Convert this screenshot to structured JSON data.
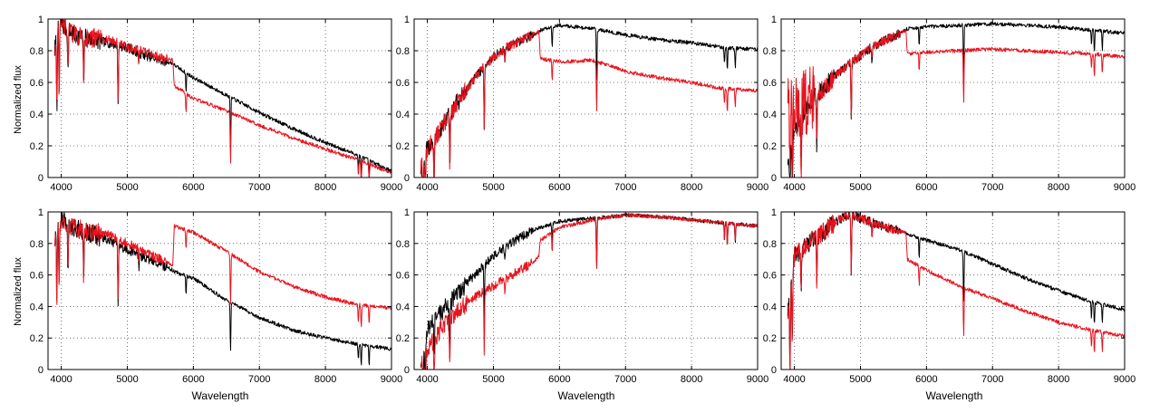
{
  "figure": {
    "ylabel_text": "Normalized flux",
    "xlabel_text": "Wavelength"
  },
  "axes": {
    "x_ticks": [
      4000,
      5000,
      6000,
      7000,
      8000,
      9000
    ],
    "y_ticks": [
      0,
      0.2,
      0.4,
      0.6,
      0.8,
      1
    ],
    "y_tick_labels": [
      "0",
      "0.2",
      "0.4",
      "0.6",
      "0.8",
      "1"
    ]
  },
  "chart_data": [
    {
      "type": "line",
      "panel": "row1-col1",
      "xlabel": "",
      "ylabel": "Normalized flux",
      "xlim": [
        3800,
        9000
      ],
      "ylim": [
        0,
        1
      ],
      "grid": "dotted",
      "x": [
        3900,
        3950,
        4000,
        4100,
        4200,
        4400,
        4600,
        4800,
        5000,
        5200,
        5500,
        5690,
        5710,
        6000,
        6500,
        7000,
        7500,
        8000,
        8500,
        9000
      ],
      "series": [
        {
          "color": "#000000",
          "values": [
            0.8,
            0.95,
            0.97,
            0.93,
            0.9,
            0.88,
            0.86,
            0.84,
            0.82,
            0.78,
            0.74,
            0.72,
            0.71,
            0.63,
            0.52,
            0.41,
            0.31,
            0.22,
            0.14,
            0.04
          ]
        },
        {
          "color": "#e8141e",
          "values": [
            0.8,
            0.95,
            0.97,
            0.93,
            0.9,
            0.88,
            0.88,
            0.86,
            0.82,
            0.8,
            0.76,
            0.74,
            0.58,
            0.5,
            0.42,
            0.33,
            0.25,
            0.18,
            0.11,
            0.03
          ]
        }
      ]
    },
    {
      "type": "line",
      "panel": "row1-col2",
      "xlabel": "",
      "ylabel": "",
      "xlim": [
        3800,
        9000
      ],
      "ylim": [
        0,
        1
      ],
      "grid": "dotted",
      "x": [
        3900,
        4000,
        4200,
        4400,
        4600,
        4800,
        5000,
        5200,
        5400,
        5600,
        5690,
        5710,
        6000,
        6500,
        7000,
        7500,
        8000,
        8500,
        9000
      ],
      "series": [
        {
          "color": "#000000",
          "values": [
            0.05,
            0.18,
            0.3,
            0.44,
            0.56,
            0.67,
            0.76,
            0.82,
            0.86,
            0.9,
            0.92,
            0.93,
            0.96,
            0.94,
            0.9,
            0.87,
            0.85,
            0.82,
            0.81
          ]
        },
        {
          "color": "#e8141e",
          "values": [
            0.05,
            0.18,
            0.3,
            0.44,
            0.56,
            0.67,
            0.76,
            0.82,
            0.86,
            0.9,
            0.92,
            0.75,
            0.73,
            0.74,
            0.67,
            0.63,
            0.6,
            0.56,
            0.55
          ]
        }
      ]
    },
    {
      "type": "line",
      "panel": "row1-col3",
      "xlabel": "",
      "ylabel": "",
      "xlim": [
        3800,
        9000
      ],
      "ylim": [
        0,
        1
      ],
      "grid": "dotted",
      "x": [
        3900,
        4000,
        4100,
        4200,
        4400,
        4600,
        4800,
        5000,
        5200,
        5400,
        5600,
        5690,
        5710,
        6000,
        6500,
        7000,
        7500,
        8000,
        8500,
        9000
      ],
      "series": [
        {
          "color": "#000000",
          "values": [
            0.1,
            0.3,
            0.38,
            0.45,
            0.55,
            0.63,
            0.71,
            0.77,
            0.83,
            0.87,
            0.91,
            0.93,
            0.94,
            0.95,
            0.96,
            0.97,
            0.96,
            0.95,
            0.93,
            0.91
          ]
        },
        {
          "color": "#e8141e",
          "values": [
            0.55,
            0.4,
            0.45,
            0.48,
            0.55,
            0.63,
            0.71,
            0.77,
            0.83,
            0.87,
            0.91,
            0.93,
            0.78,
            0.79,
            0.8,
            0.81,
            0.8,
            0.79,
            0.78,
            0.76
          ]
        }
      ]
    },
    {
      "type": "line",
      "panel": "row2-col1",
      "xlabel": "Wavelength",
      "ylabel": "Normalized flux",
      "xlim": [
        3800,
        9000
      ],
      "ylim": [
        0,
        1
      ],
      "grid": "dotted",
      "x": [
        3900,
        3950,
        4000,
        4100,
        4200,
        4400,
        4600,
        4800,
        5000,
        5200,
        5500,
        5690,
        5710,
        6000,
        6500,
        7000,
        7500,
        8000,
        8500,
        9000
      ],
      "series": [
        {
          "color": "#000000",
          "values": [
            0.8,
            0.93,
            0.95,
            0.92,
            0.9,
            0.87,
            0.84,
            0.8,
            0.76,
            0.72,
            0.67,
            0.63,
            0.62,
            0.58,
            0.44,
            0.33,
            0.25,
            0.2,
            0.16,
            0.13
          ]
        },
        {
          "color": "#e8141e",
          "values": [
            0.8,
            0.93,
            0.95,
            0.92,
            0.9,
            0.88,
            0.87,
            0.84,
            0.8,
            0.76,
            0.7,
            0.66,
            0.91,
            0.87,
            0.75,
            0.62,
            0.53,
            0.46,
            0.41,
            0.39
          ]
        }
      ]
    },
    {
      "type": "line",
      "panel": "row2-col2",
      "xlabel": "Wavelength",
      "ylabel": "",
      "xlim": [
        3800,
        9000
      ],
      "ylim": [
        0,
        1
      ],
      "grid": "dotted",
      "x": [
        3900,
        4000,
        4200,
        4400,
        4600,
        4800,
        5000,
        5200,
        5400,
        5600,
        5690,
        5710,
        6000,
        6500,
        7000,
        7500,
        8000,
        8500,
        9000
      ],
      "series": [
        {
          "color": "#000000",
          "values": [
            0.05,
            0.25,
            0.36,
            0.45,
            0.55,
            0.64,
            0.72,
            0.78,
            0.84,
            0.88,
            0.9,
            0.9,
            0.94,
            0.96,
            0.98,
            0.97,
            0.95,
            0.93,
            0.91
          ]
        },
        {
          "color": "#e8141e",
          "values": [
            0.05,
            0.12,
            0.25,
            0.35,
            0.42,
            0.48,
            0.53,
            0.58,
            0.63,
            0.68,
            0.72,
            0.82,
            0.9,
            0.95,
            0.98,
            0.97,
            0.95,
            0.93,
            0.91
          ]
        }
      ]
    },
    {
      "type": "line",
      "panel": "row2-col3",
      "xlabel": "Wavelength",
      "ylabel": "",
      "xlim": [
        3800,
        9000
      ],
      "ylim": [
        0,
        1
      ],
      "grid": "dotted",
      "x": [
        3900,
        4000,
        4200,
        4400,
        4600,
        4800,
        5000,
        5200,
        5400,
        5690,
        5710,
        6000,
        6500,
        7000,
        7500,
        8000,
        8500,
        9000
      ],
      "series": [
        {
          "color": "#000000",
          "values": [
            0.35,
            0.72,
            0.8,
            0.86,
            0.93,
            0.98,
            0.96,
            0.93,
            0.9,
            0.87,
            0.86,
            0.82,
            0.76,
            0.67,
            0.58,
            0.5,
            0.43,
            0.38
          ]
        },
        {
          "color": "#e8141e",
          "values": [
            0.35,
            0.72,
            0.8,
            0.86,
            0.93,
            0.98,
            0.96,
            0.93,
            0.9,
            0.87,
            0.7,
            0.63,
            0.53,
            0.45,
            0.37,
            0.3,
            0.25,
            0.21
          ]
        }
      ]
    }
  ]
}
